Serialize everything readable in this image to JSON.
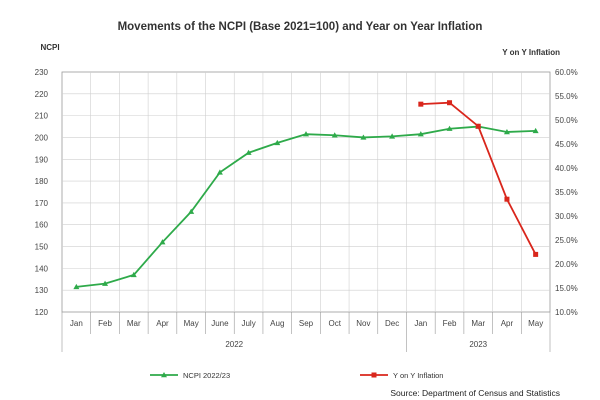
{
  "chart_data": {
    "type": "line",
    "title": "Movements of the NCPI (Base 2021=100) and Year on Year Inflation",
    "ylabel_left": "NCPI",
    "ylabel_right": "Y on Y Inflation",
    "categories": [
      "Jan",
      "Feb",
      "Mar",
      "Apr",
      "May",
      "June",
      "July",
      "Aug",
      "Sep",
      "Oct",
      "Nov",
      "Dec",
      "Jan",
      "Feb",
      "Mar",
      "Apr",
      "May"
    ],
    "year_groups": [
      {
        "label": "2022",
        "start": 0,
        "end": 11
      },
      {
        "label": "2023",
        "start": 12,
        "end": 16
      }
    ],
    "y_left_lim": [
      120,
      230
    ],
    "y_left_ticks": [
      "120",
      "130",
      "140",
      "150",
      "160",
      "170",
      "180",
      "190",
      "200",
      "210",
      "220",
      "230"
    ],
    "y_right_lim": [
      10,
      60
    ],
    "y_right_ticks": [
      "10.0%",
      "15.0%",
      "20.0%",
      "25.0%",
      "30.0%",
      "35.0%",
      "40.0%",
      "45.0%",
      "50.0%",
      "55.0%",
      "60.0%"
    ],
    "grid": true,
    "legend_position": "bottom",
    "series": [
      {
        "name": "NCPI 2022/23",
        "axis": "left",
        "color": "#2eaa4a",
        "marker": "triangle",
        "values": [
          131.5,
          133,
          137,
          152,
          166,
          184,
          193,
          197.5,
          201.5,
          201,
          200,
          200.5,
          201.5,
          204,
          205,
          202.5,
          203
        ]
      },
      {
        "name": "Y on Y Inflation",
        "axis": "right",
        "color": "#d9261c",
        "marker": "square",
        "values": [
          null,
          null,
          null,
          null,
          null,
          null,
          null,
          null,
          null,
          null,
          null,
          null,
          53.3,
          53.6,
          48.7,
          33.5,
          22.0
        ]
      }
    ]
  },
  "source": "Source: Department of Census and Statistics"
}
